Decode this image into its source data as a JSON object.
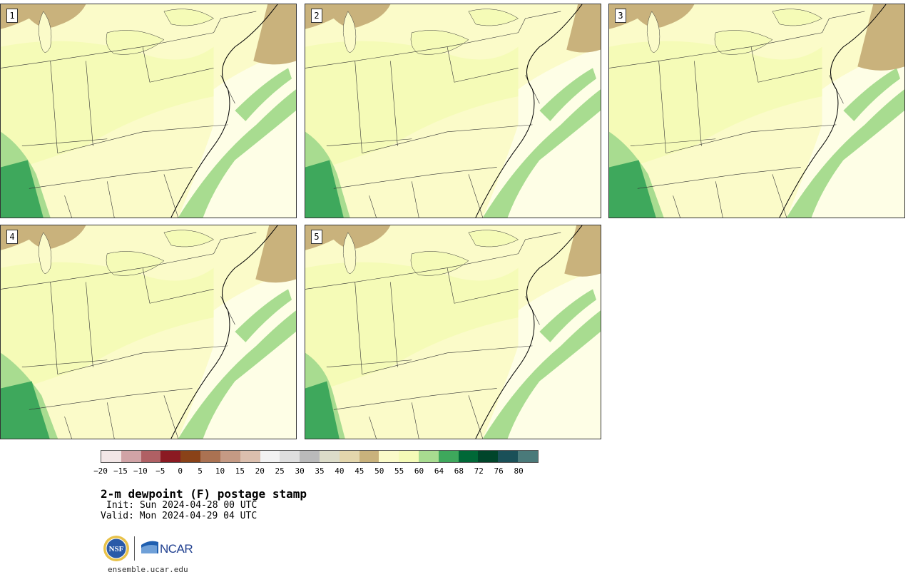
{
  "panels": [
    {
      "label": "1"
    },
    {
      "label": "2"
    },
    {
      "label": "3"
    },
    {
      "label": "4"
    },
    {
      "label": "5"
    }
  ],
  "colorbar": {
    "colors": [
      "#f2e6e6",
      "#d1a3a6",
      "#b06064",
      "#8b1a22",
      "#8a4218",
      "#ab7252",
      "#c59a84",
      "#dbbfae",
      "#f2f2f2",
      "#dedede",
      "#bababa",
      "#dcdcc9",
      "#e3d6ac",
      "#c9b27c",
      "#fbfbc9",
      "#f5fbb7",
      "#a8dc90",
      "#3ea85c",
      "#006837",
      "#00452a",
      "#1a5058",
      "#4a7a7a"
    ],
    "ticks": [
      "−20",
      "−15",
      "−10",
      "−5",
      "0",
      "5",
      "10",
      "15",
      "20",
      "25",
      "30",
      "35",
      "40",
      "45",
      "50",
      "55",
      "60",
      "64",
      "68",
      "72",
      "76",
      "80"
    ]
  },
  "text": {
    "title": "2-m dewpoint (F) postage stamp",
    "init": "Init: Sun 2024-04-28 00 UTC",
    "valid": "Valid: Mon 2024-04-29 04 UTC",
    "site": "ensemble.ucar.edu",
    "ncar": "NCAR",
    "nsf": "NSF"
  },
  "map_colors": {
    "lake_tan": "#c9b27c",
    "pale_yellow": "#fbfbc9",
    "light_yellow": "#f5fbb7",
    "light_green": "#a8dc90",
    "mid_green": "#3ea85c",
    "cream": "#fefee6",
    "boundary": "#333333"
  }
}
